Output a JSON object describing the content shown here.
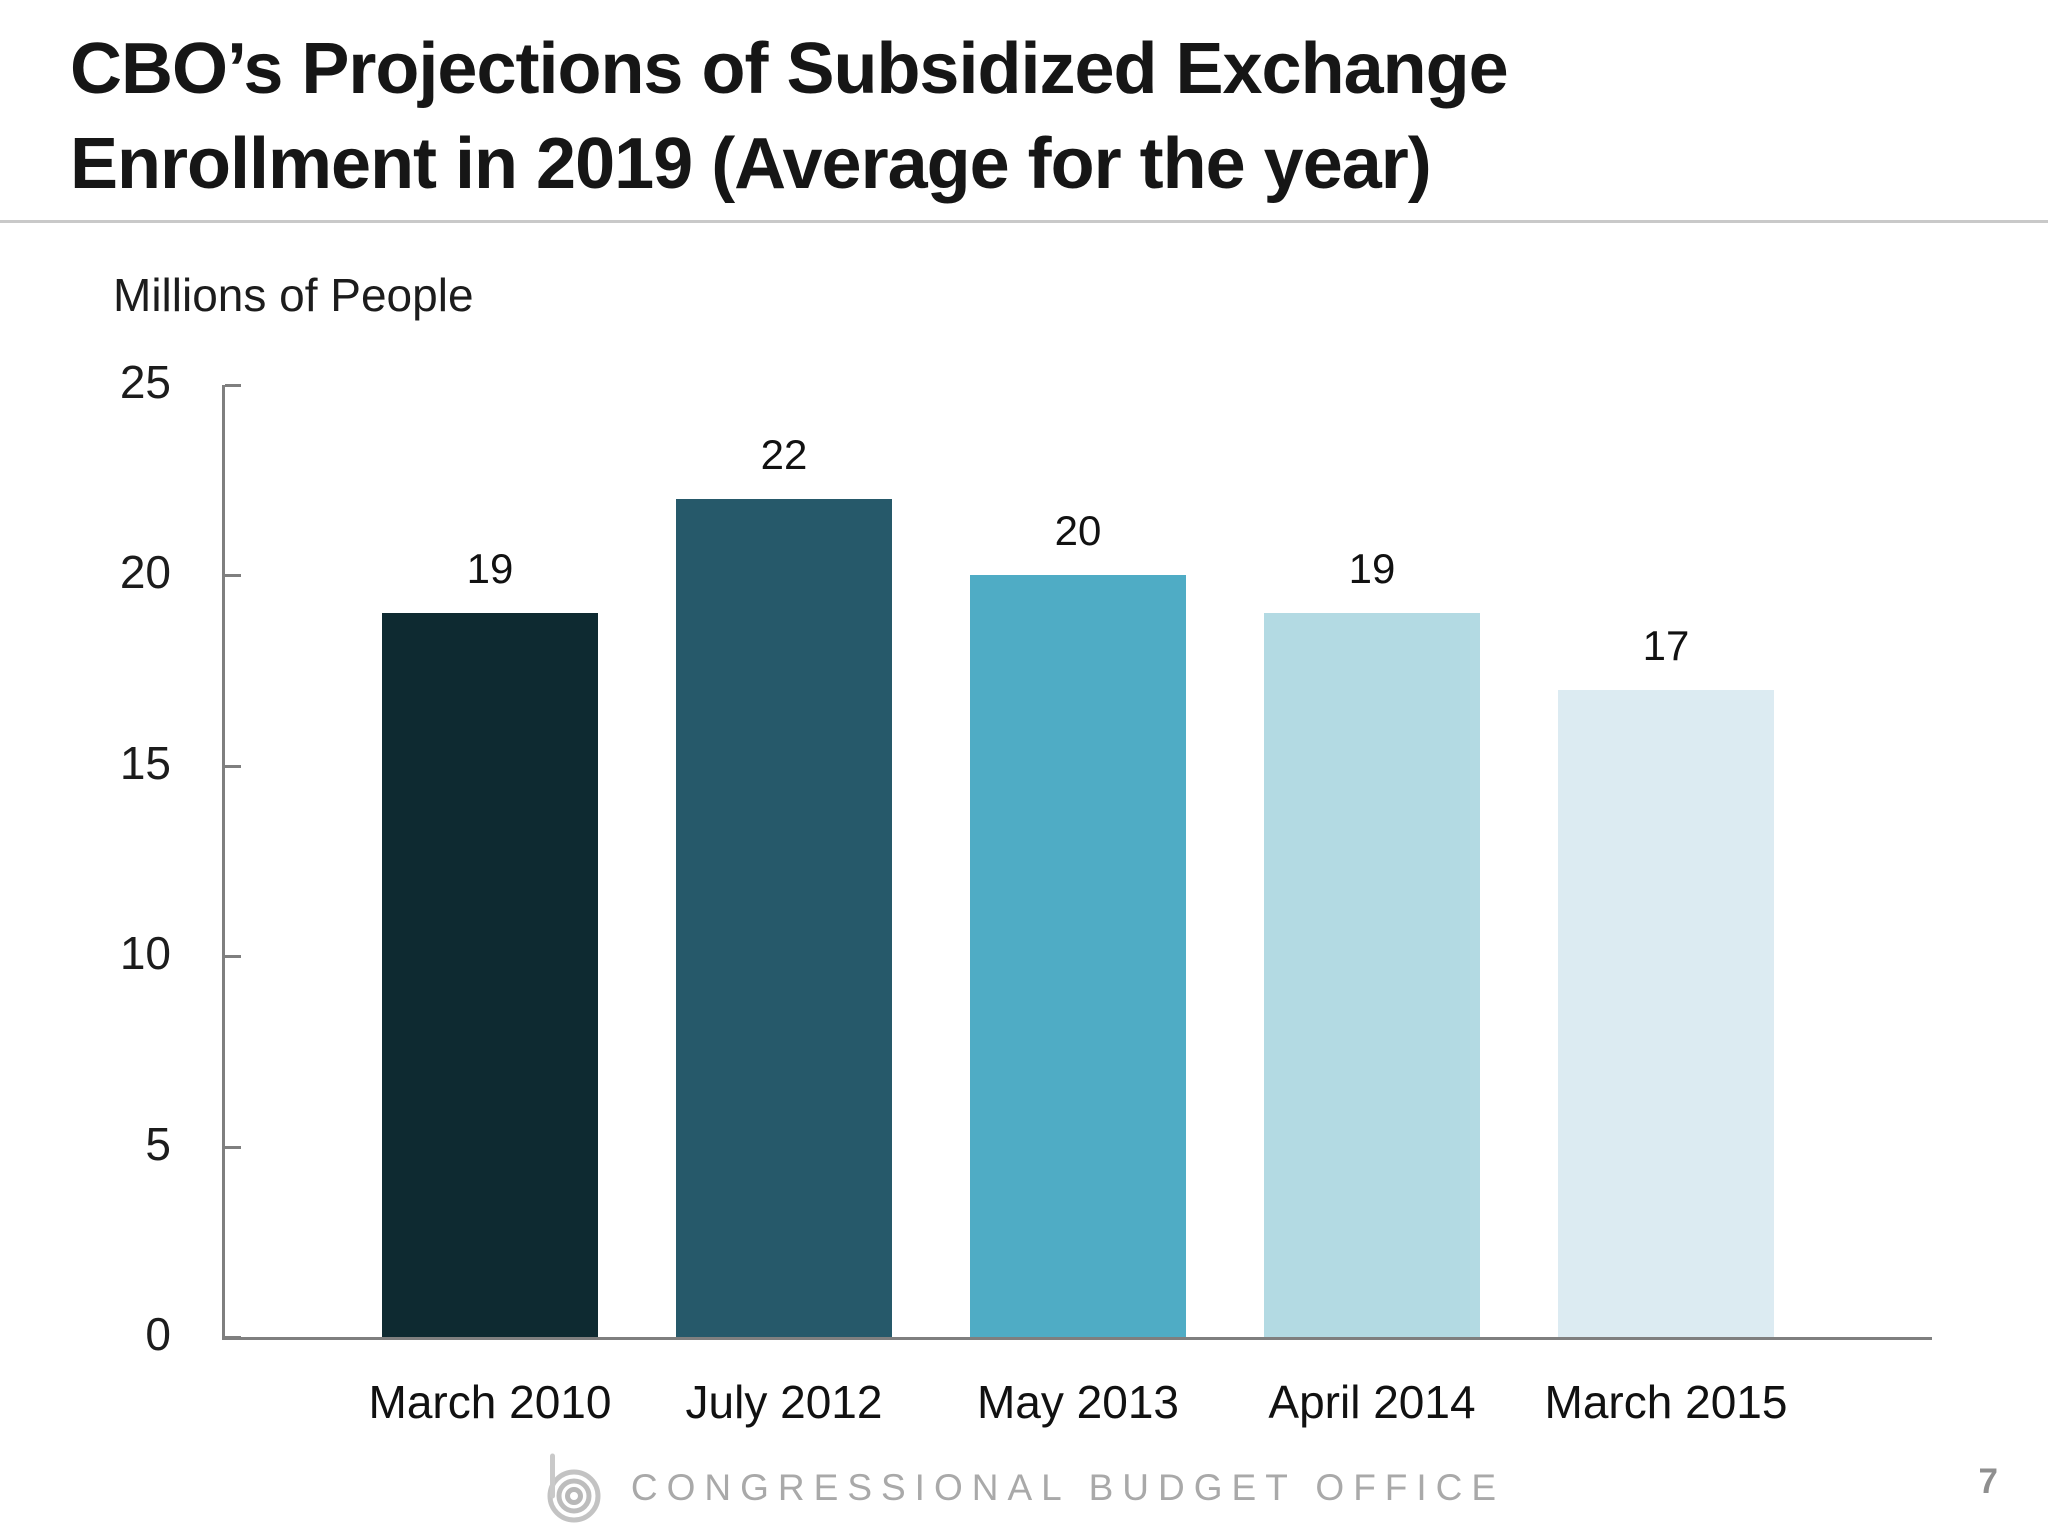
{
  "header": {
    "title_line1": "CBO’s Projections of Subsidized Exchange",
    "title_line2": "Enrollment in 2019 (Average for the year)"
  },
  "footer": {
    "org_name": "CONGRESSIONAL BUDGET OFFICE",
    "page_number": "7"
  },
  "chart_data": {
    "type": "bar",
    "title": "CBO’s Projections of Subsidized Exchange Enrollment in 2019 (Average for the year)",
    "ylabel": "Millions of People",
    "xlabel": "",
    "categories": [
      "March 2010",
      "July 2012",
      "May 2013",
      "April 2014",
      "March 2015"
    ],
    "values": [
      19,
      22,
      20,
      19,
      17
    ],
    "value_labels": [
      "19",
      "22",
      "20",
      "19",
      "17"
    ],
    "bar_colors": [
      "#0e2a31",
      "#26596a",
      "#4facc5",
      "#b3dae3",
      "#dcebf2"
    ],
    "yticks": [
      0,
      5,
      10,
      15,
      20,
      25
    ],
    "ylim": [
      0,
      25
    ],
    "grid": false,
    "legend_position": "none",
    "axis_color": "#7f7f7f",
    "text_color": "#1c1c1c"
  }
}
